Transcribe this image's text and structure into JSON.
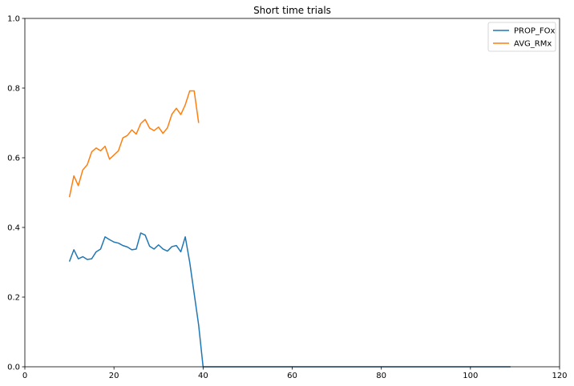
{
  "chart_data": {
    "type": "line",
    "title": "Short time trials",
    "xlabel": "",
    "ylabel": "",
    "xlim": [
      0,
      120
    ],
    "ylim": [
      0,
      1.0
    ],
    "xticks": [
      0,
      20,
      40,
      60,
      80,
      100,
      120
    ],
    "yticks": [
      0.0,
      0.2,
      0.4,
      0.6,
      0.8,
      1.0
    ],
    "xtick_labels": [
      "0",
      "20",
      "40",
      "60",
      "80",
      "100",
      "120"
    ],
    "ytick_labels": [
      "0.0",
      "0.2",
      "0.4",
      "0.6",
      "0.8",
      "1.0"
    ],
    "grid": false,
    "legend_position": "top-right",
    "series": [
      {
        "name": "PROP_FOx",
        "color": "#1f77b4",
        "x": [
          10,
          11,
          12,
          13,
          14,
          15,
          16,
          17,
          18,
          19,
          20,
          21,
          22,
          23,
          24,
          25,
          26,
          27,
          28,
          29,
          30,
          31,
          32,
          33,
          34,
          35,
          36,
          37,
          38,
          39,
          40,
          50,
          60,
          70,
          80,
          90,
          100,
          109
        ],
        "y": [
          0.302,
          0.336,
          0.31,
          0.316,
          0.308,
          0.31,
          0.33,
          0.338,
          0.373,
          0.365,
          0.358,
          0.355,
          0.348,
          0.344,
          0.336,
          0.338,
          0.384,
          0.378,
          0.346,
          0.338,
          0.35,
          0.338,
          0.332,
          0.345,
          0.348,
          0.33,
          0.373,
          0.3,
          0.21,
          0.12,
          0.0,
          0.0,
          0.0,
          0.0,
          0.0,
          0.0,
          0.0,
          0.0
        ]
      },
      {
        "name": "AVG_RMx",
        "color": "#ff7f0e",
        "x": [
          10,
          11,
          12,
          13,
          14,
          15,
          16,
          17,
          18,
          19,
          20,
          21,
          22,
          23,
          24,
          25,
          26,
          27,
          28,
          29,
          30,
          31,
          32,
          33,
          34,
          35,
          36,
          37,
          38,
          39
        ],
        "y": [
          0.487,
          0.548,
          0.52,
          0.565,
          0.58,
          0.617,
          0.628,
          0.62,
          0.633,
          0.596,
          0.608,
          0.62,
          0.657,
          0.664,
          0.68,
          0.668,
          0.698,
          0.71,
          0.685,
          0.678,
          0.688,
          0.67,
          0.686,
          0.725,
          0.742,
          0.724,
          0.752,
          0.792,
          0.792,
          0.7
        ]
      }
    ]
  }
}
